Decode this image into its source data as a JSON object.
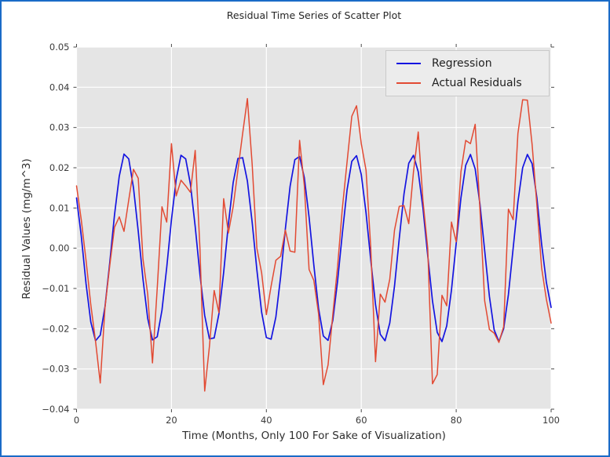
{
  "window": {
    "border_color": "#1a6bc7",
    "background": "#ffffff"
  },
  "chart_data": {
    "type": "line",
    "title": "Residual Time Series of Scatter Plot",
    "xlabel": "Time (Months, Only 100 For Sake of Visualization)",
    "ylabel": "Residual Values (mg/m^3)",
    "xlim": [
      0,
      100
    ],
    "ylim": [
      -0.04,
      0.05
    ],
    "xticks": [
      0,
      20,
      40,
      60,
      80,
      100
    ],
    "xtick_labels": [
      "0",
      "20",
      "40",
      "60",
      "80",
      "100"
    ],
    "yticks": [
      0.05,
      0.04,
      0.03,
      0.02,
      0.01,
      0.0,
      -0.01,
      -0.02,
      -0.03,
      -0.04
    ],
    "ytick_labels": [
      "0.05",
      "0.04",
      "0.03",
      "0.02",
      "0.01",
      "0.00",
      "−0.01",
      "−0.02",
      "−0.03",
      "−0.04"
    ],
    "grid": true,
    "plot_bg": "#e5e5e5",
    "grid_color": "#ffffff",
    "tick_color": "#4a4a4a",
    "tick_label_color": "#3a3a3a",
    "legend": {
      "position": "upper right"
    },
    "x": [
      0,
      1,
      2,
      3,
      4,
      5,
      6,
      7,
      8,
      9,
      10,
      11,
      12,
      13,
      14,
      15,
      16,
      17,
      18,
      19,
      20,
      21,
      22,
      23,
      24,
      25,
      26,
      27,
      28,
      29,
      30,
      31,
      32,
      33,
      34,
      35,
      36,
      37,
      38,
      39,
      40,
      41,
      42,
      43,
      44,
      45,
      46,
      47,
      48,
      49,
      50,
      51,
      52,
      53,
      54,
      55,
      56,
      57,
      58,
      59,
      60,
      61,
      62,
      63,
      64,
      65,
      66,
      67,
      68,
      69,
      70,
      71,
      72,
      73,
      74,
      75,
      76,
      77,
      78,
      79,
      80,
      81,
      82,
      83,
      84,
      85,
      86,
      87,
      88,
      89,
      90,
      91,
      92,
      93,
      94,
      95,
      96,
      97,
      98,
      99,
      100
    ],
    "series": [
      {
        "name": "Regression",
        "color": "#1414e0",
        "line_width": 1.7,
        "values": [
          0.0125,
          0.003,
          -0.0088,
          -0.0183,
          -0.023,
          -0.0216,
          -0.0145,
          -0.0036,
          0.0083,
          0.0179,
          0.0234,
          0.0222,
          0.015,
          0.0042,
          -0.0077,
          -0.0175,
          -0.0228,
          -0.022,
          -0.0154,
          -0.0048,
          0.0071,
          0.0171,
          0.0231,
          0.0222,
          0.0159,
          0.0054,
          -0.0065,
          -0.0167,
          -0.0225,
          -0.0223,
          -0.0163,
          -0.006,
          0.006,
          0.0163,
          0.0223,
          0.0225,
          0.0167,
          0.0065,
          -0.0054,
          -0.0159,
          -0.0222,
          -0.0226,
          -0.0171,
          -0.0071,
          0.0048,
          0.0154,
          0.022,
          0.0228,
          0.0175,
          0.0077,
          -0.0042,
          -0.015,
          -0.0218,
          -0.0229,
          -0.0179,
          -0.0082,
          0.0036,
          0.0145,
          0.0216,
          0.023,
          0.0183,
          0.0088,
          -0.003,
          -0.014,
          -0.0214,
          -0.023,
          -0.0186,
          -0.0094,
          0.0024,
          0.0135,
          0.0211,
          0.0231,
          0.019,
          0.0099,
          -0.0018,
          -0.0131,
          -0.0209,
          -0.0232,
          -0.0193,
          -0.0104,
          0.0012,
          0.0125,
          0.0206,
          0.0233,
          0.0197,
          0.011,
          -0.0006,
          -0.012,
          -0.0203,
          -0.0232,
          -0.02,
          -0.0115,
          0.0,
          0.0115,
          0.02,
          0.0233,
          0.021,
          0.0125,
          0.001,
          -0.0085,
          -0.0147
        ]
      },
      {
        "name": "Actual Residuals",
        "color": "#e24a33",
        "line_width": 1.5,
        "values": [
          0.0155,
          0.007,
          -0.003,
          -0.014,
          -0.0231,
          -0.0335,
          -0.0147,
          -0.0043,
          0.0052,
          0.0078,
          0.0042,
          0.012,
          0.0196,
          0.0174,
          -0.0027,
          -0.0115,
          -0.0285,
          -0.01,
          0.0103,
          0.0065,
          0.026,
          0.013,
          0.0169,
          0.0155,
          0.0139,
          0.0243,
          0.0,
          -0.0355,
          -0.0244,
          -0.0105,
          -0.016,
          0.0123,
          0.0038,
          0.0103,
          0.0194,
          0.0285,
          0.0372,
          0.021,
          0.0,
          -0.0061,
          -0.0165,
          -0.0094,
          -0.003,
          -0.002,
          0.0045,
          -0.0007,
          -0.001,
          0.0268,
          0.0155,
          -0.0053,
          -0.008,
          -0.0163,
          -0.0339,
          -0.029,
          -0.0165,
          -0.0046,
          0.0098,
          0.0214,
          0.0328,
          0.0354,
          0.026,
          0.0194,
          0.0,
          -0.0282,
          -0.0114,
          -0.0134,
          -0.0077,
          0.0045,
          0.0104,
          0.0106,
          0.0061,
          0.019,
          0.0289,
          0.0118,
          0.0,
          -0.0337,
          -0.0314,
          -0.0117,
          -0.0143,
          0.0065,
          0.0016,
          0.019,
          0.0268,
          0.026,
          0.0308,
          0.0097,
          -0.0131,
          -0.0202,
          -0.0211,
          -0.0234,
          -0.0195,
          0.0097,
          0.0071,
          0.0285,
          0.0369,
          0.0368,
          0.0257,
          0.0107,
          -0.0049,
          -0.0127,
          -0.0186
        ]
      }
    ]
  }
}
